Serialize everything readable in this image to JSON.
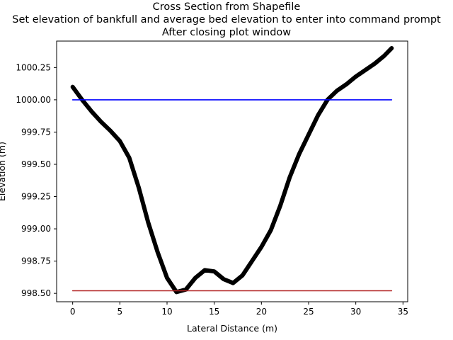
{
  "chart_data": {
    "type": "line",
    "title_lines": [
      "Cross Section from Shapefile",
      "Set elevation of bankfull and average bed elevation to enter into command prompt",
      "After closing plot window"
    ],
    "xlabel": "Lateral Distance (m)",
    "ylabel": "Elevation (m)",
    "xlim": [
      -1.7,
      35.5
    ],
    "ylim": [
      998.435,
      1000.455
    ],
    "x_ticks": [
      0,
      5,
      10,
      15,
      20,
      25,
      30,
      35
    ],
    "x_tick_labels": [
      "0",
      "5",
      "10",
      "15",
      "20",
      "25",
      "30",
      "35"
    ],
    "y_ticks": [
      998.5,
      998.75,
      999.0,
      999.25,
      999.5,
      999.75,
      1000.0,
      1000.25
    ],
    "y_tick_labels": [
      "998.50",
      "998.75",
      "999.00",
      "999.25",
      "999.50",
      "999.75",
      "1000.00",
      "1000.25"
    ],
    "grid": false,
    "series": [
      {
        "color": "#000000",
        "x": [
          0,
          1,
          2,
          3,
          4,
          5,
          6,
          7,
          8,
          9,
          10,
          11,
          12,
          13,
          14,
          15,
          16,
          17,
          18,
          19,
          20,
          21,
          22,
          23,
          24,
          25,
          26,
          27,
          28,
          29,
          30,
          31,
          32,
          33,
          33.8
        ],
        "y": [
          1000.1,
          1000.0,
          999.91,
          999.83,
          999.76,
          999.68,
          999.55,
          999.32,
          999.05,
          998.82,
          998.62,
          998.51,
          998.53,
          998.62,
          998.68,
          998.67,
          998.61,
          998.58,
          998.64,
          998.75,
          998.86,
          998.99,
          999.18,
          999.4,
          999.58,
          999.73,
          999.88,
          1000.0,
          1000.07,
          1000.12,
          1000.18,
          1000.23,
          1000.28,
          1000.34,
          1000.4
        ]
      },
      {
        "color": "#0000ff",
        "x": [
          0,
          33.8
        ],
        "y": [
          1000.0,
          1000.0
        ]
      },
      {
        "color": "#b22222",
        "x": [
          0,
          33.8
        ],
        "y": [
          998.52,
          998.52
        ]
      }
    ]
  }
}
